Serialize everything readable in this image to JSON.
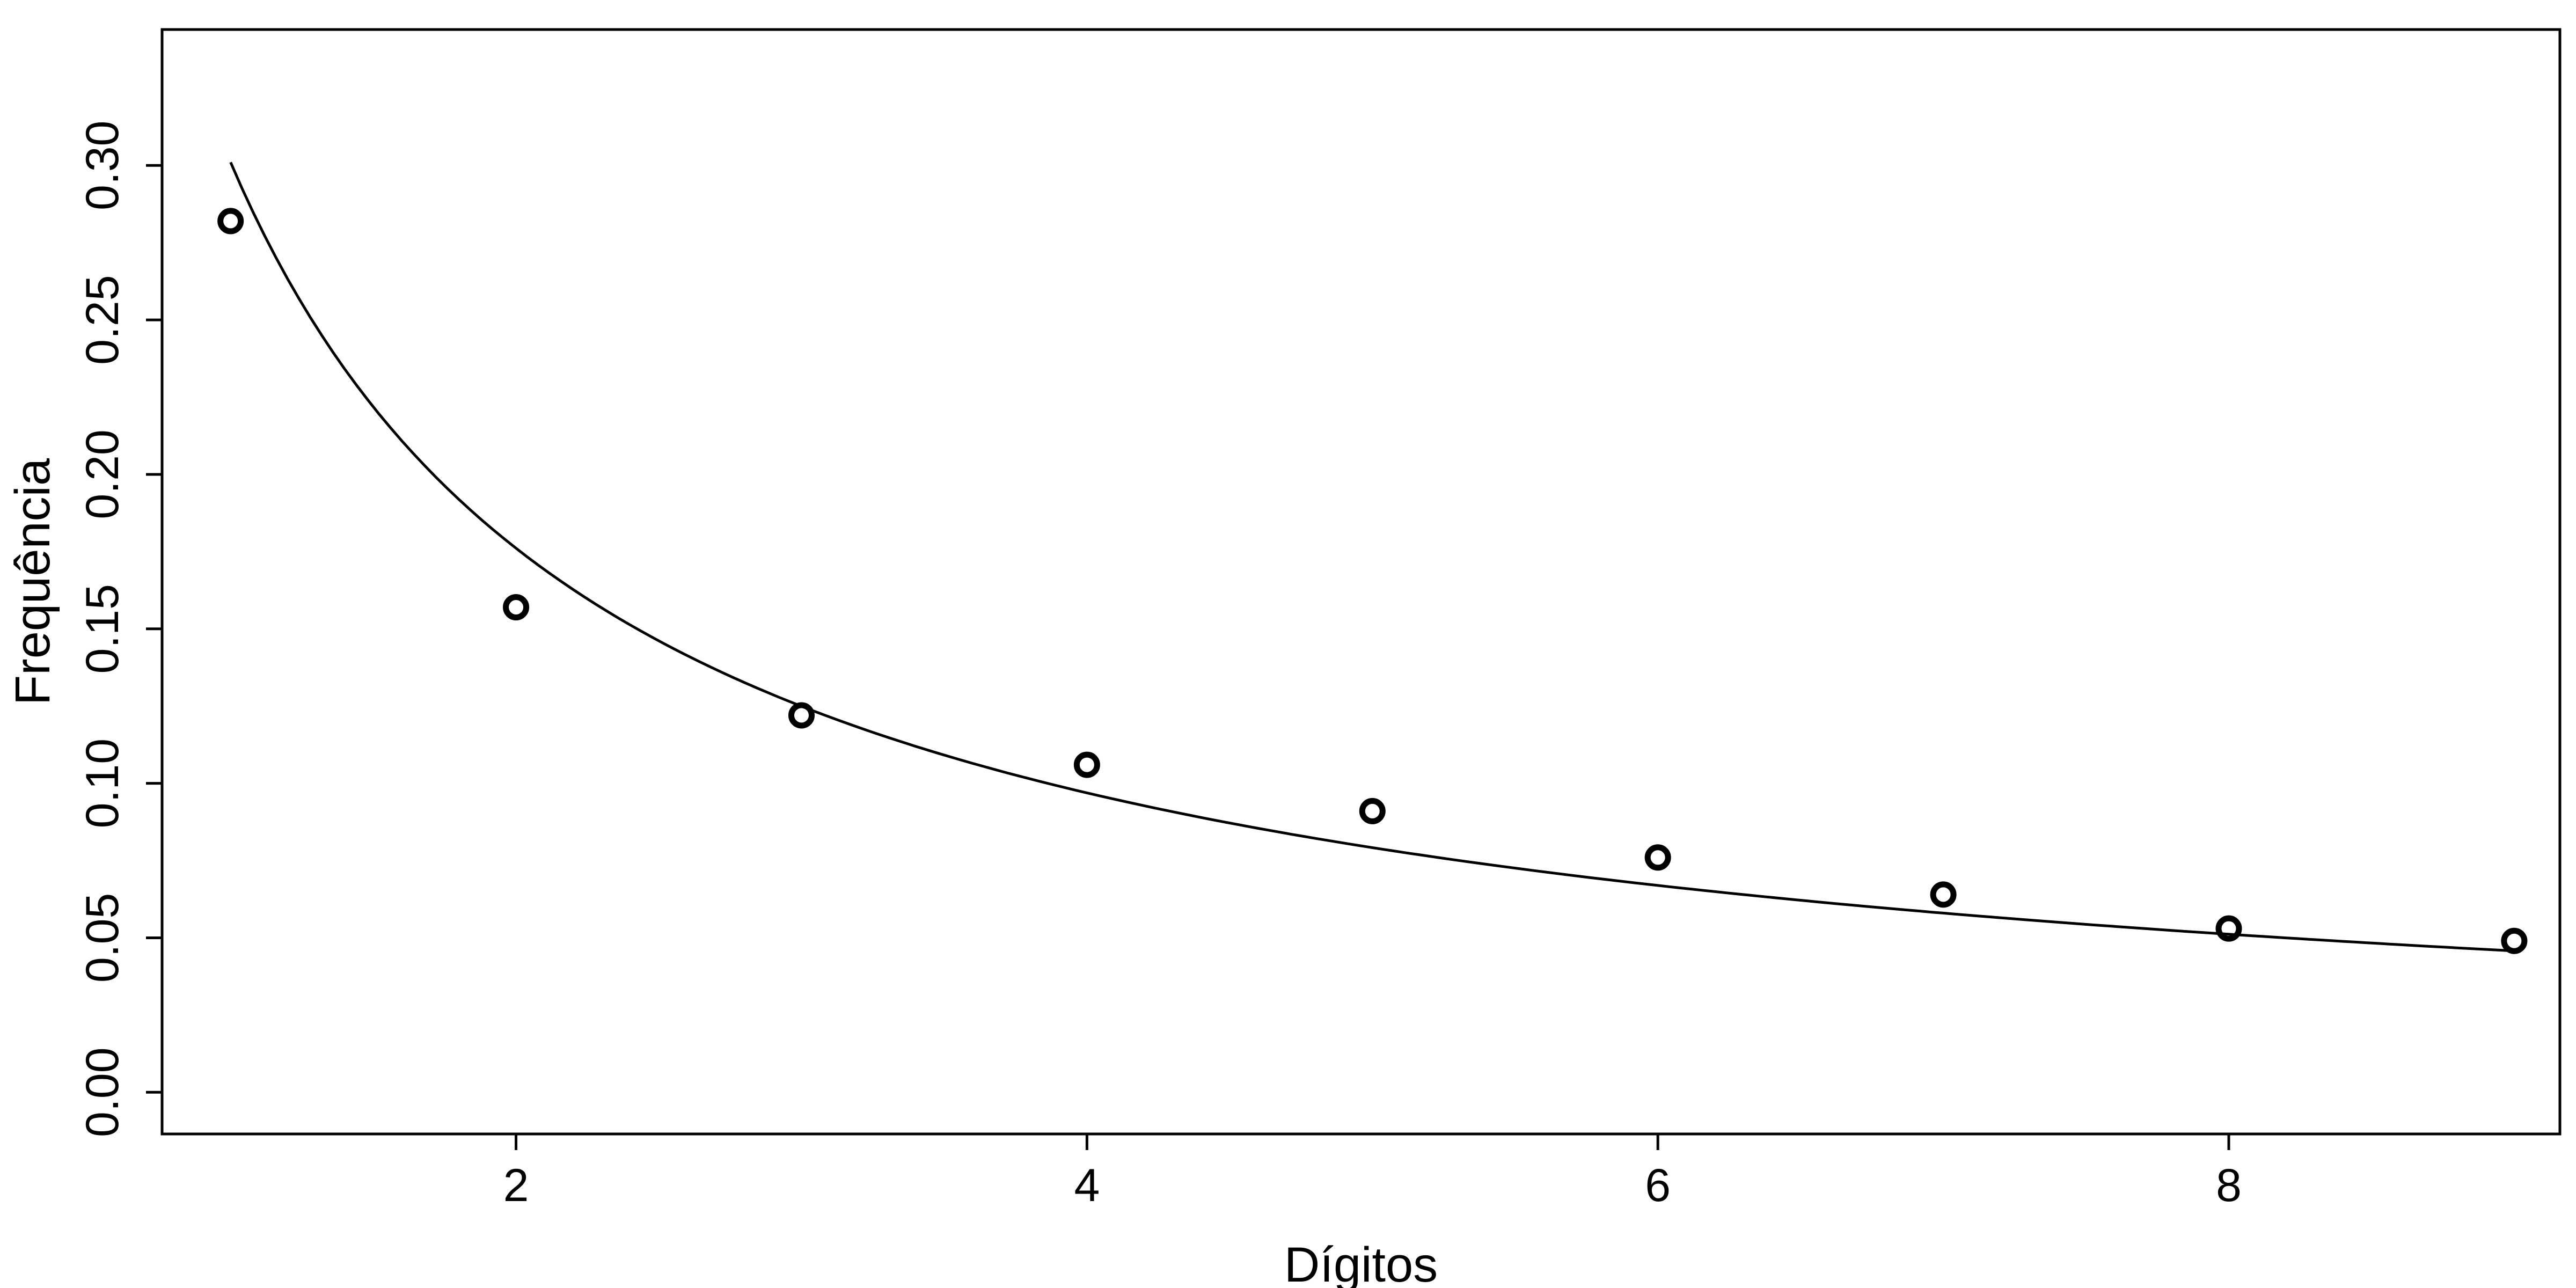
{
  "chart_data": {
    "type": "scatter",
    "xlabel": "Dígitos",
    "ylabel": "Frequência",
    "xlim": [
      0.76,
      9.16
    ],
    "ylim": [
      -0.0135,
      0.344
    ],
    "x_ticks": [
      2,
      4,
      6,
      8
    ],
    "x_tick_labels": [
      "2",
      "4",
      "6",
      "8"
    ],
    "y_ticks": [
      0,
      0.05,
      0.1,
      0.15,
      0.2,
      0.25,
      0.3
    ],
    "y_tick_labels": [
      "0.00",
      "0.05",
      "0.10",
      "0.15",
      "0.20",
      "0.25",
      "0.30"
    ],
    "grid": false,
    "legend": "none",
    "series": [
      {
        "kind": "points",
        "marker": "open-circle",
        "x": [
          1,
          2,
          3,
          4,
          5,
          6,
          7,
          8,
          9
        ],
        "y": [
          0.282,
          0.157,
          0.122,
          0.106,
          0.091,
          0.076,
          0.064,
          0.053,
          0.049
        ]
      },
      {
        "kind": "line",
        "function": "log10(1 + 1/x)",
        "x_range": [
          1,
          9
        ]
      }
    ],
    "colors": {
      "ink": "#000000",
      "background": "#ffffff"
    }
  }
}
